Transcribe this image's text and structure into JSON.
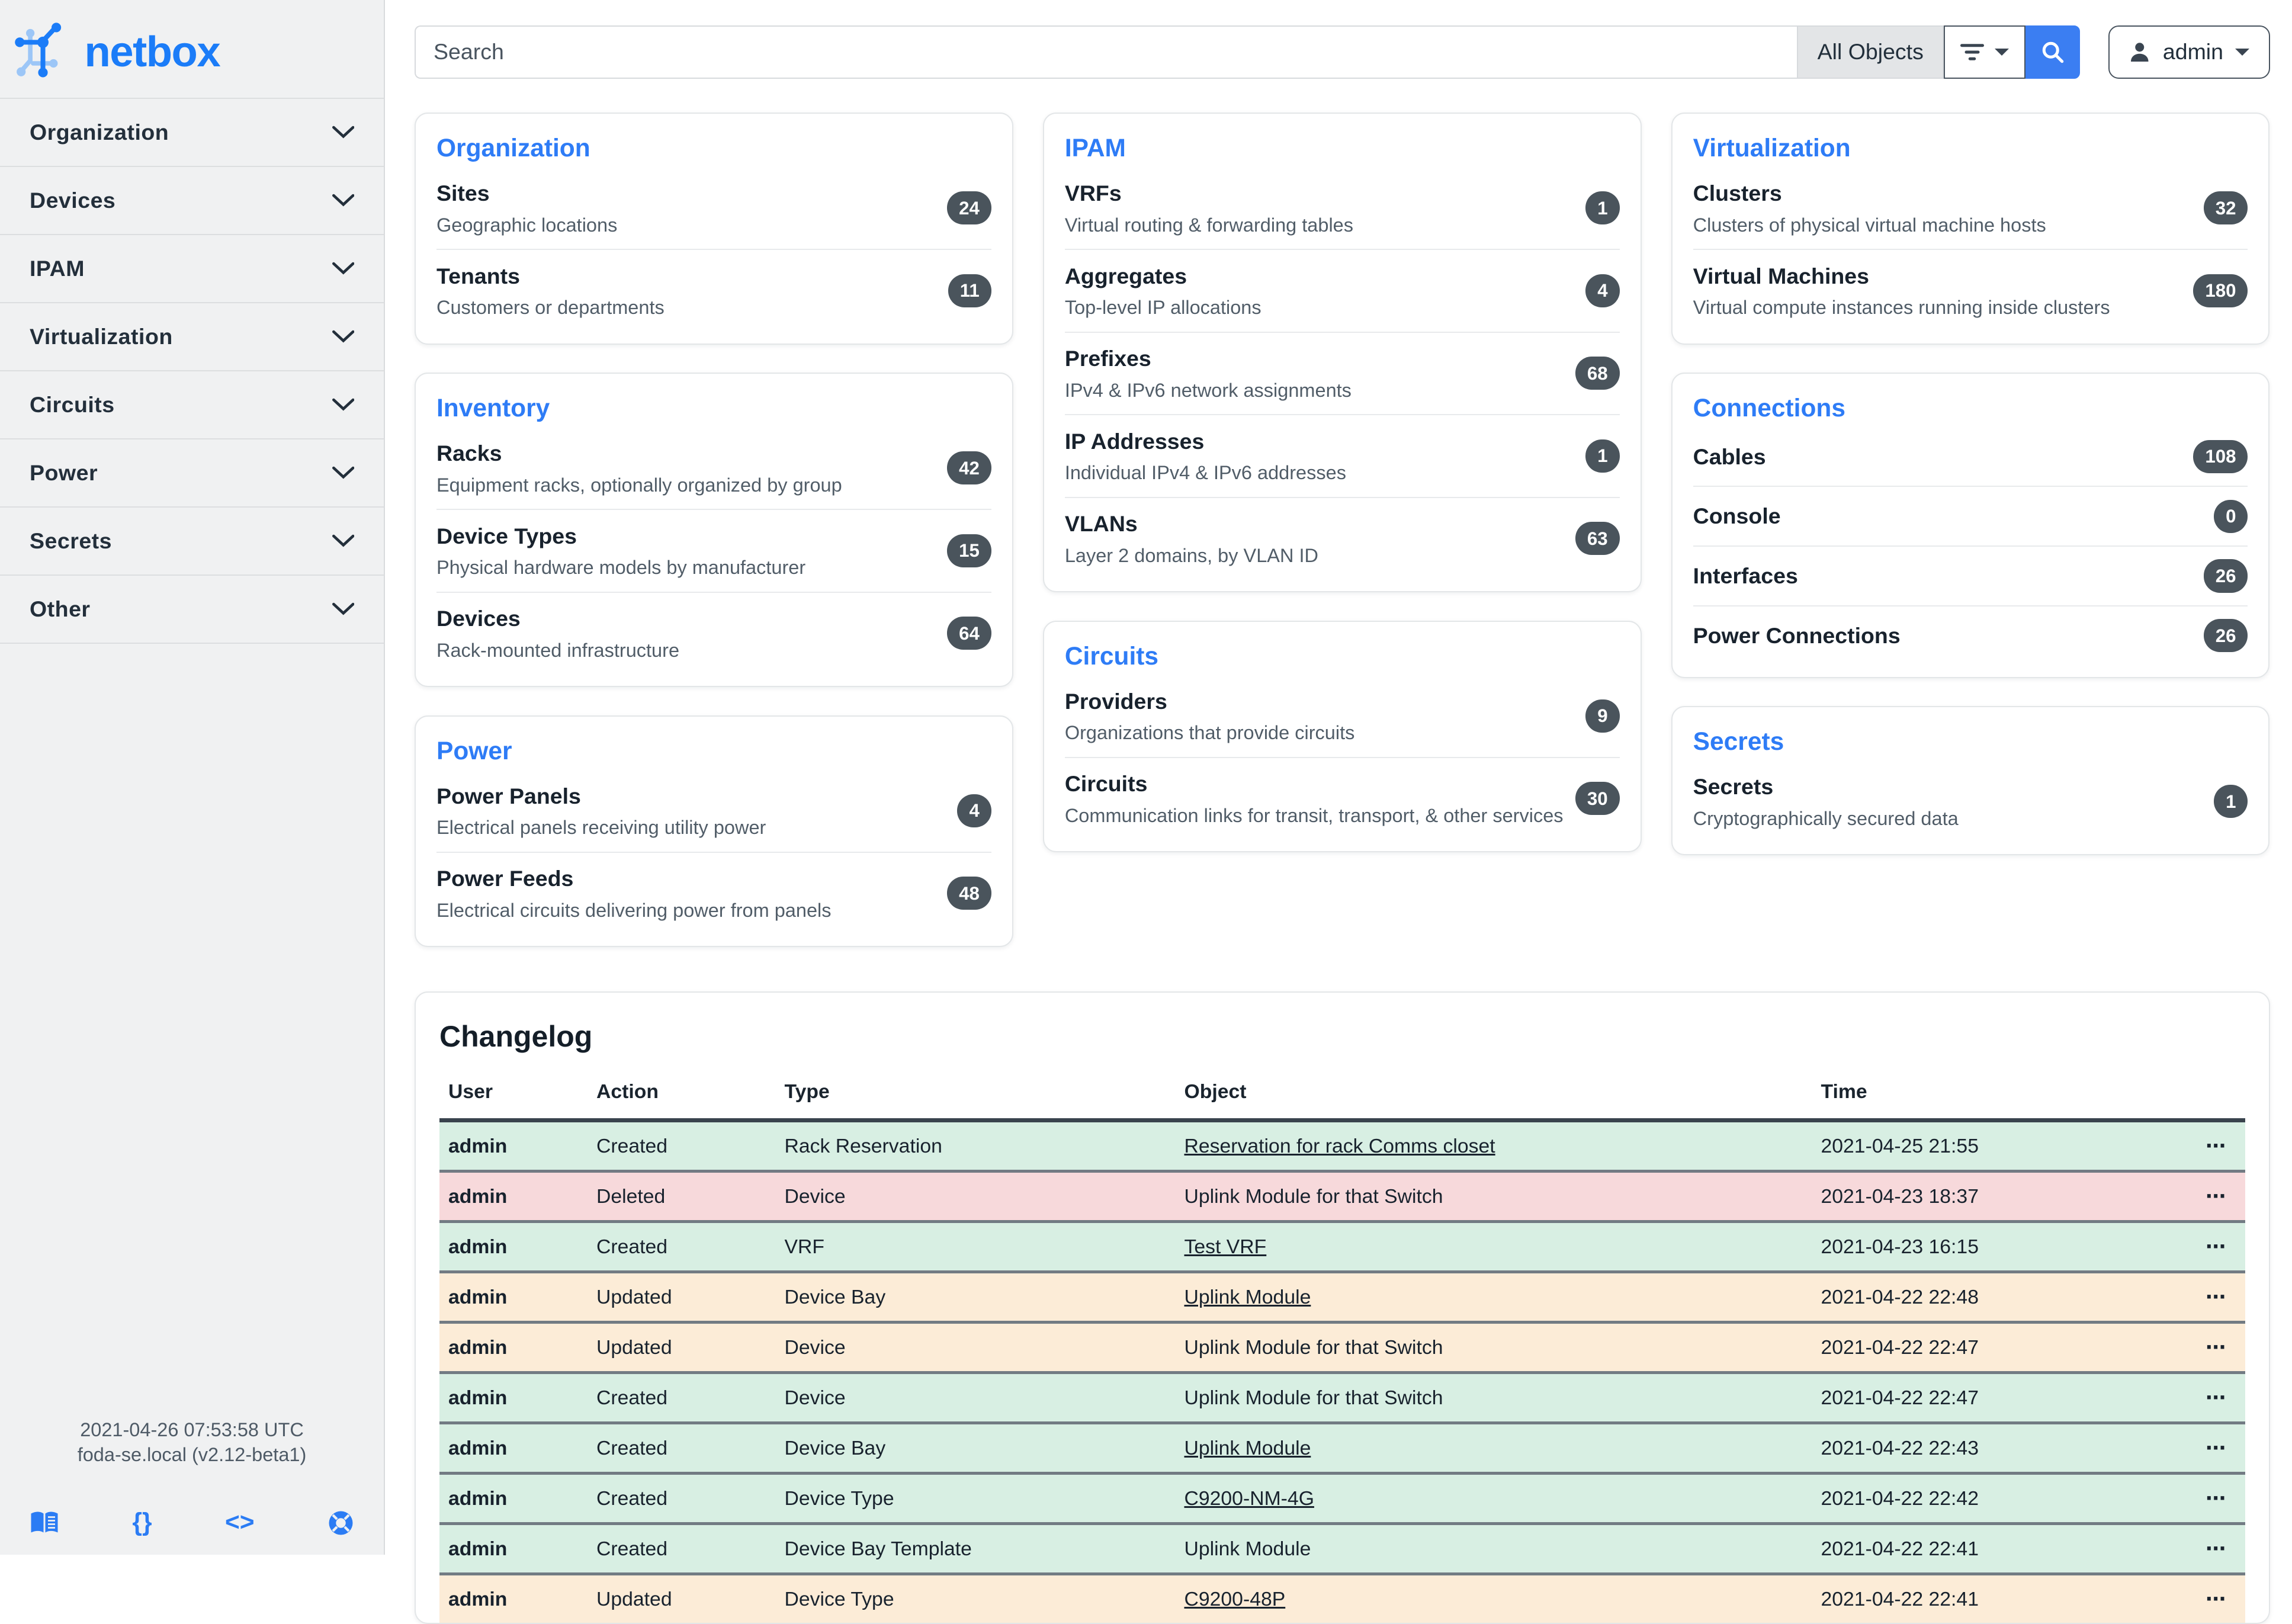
{
  "brand": {
    "name": "netbox"
  },
  "topbar": {
    "search_placeholder": "Search",
    "scope_label": "All Objects",
    "user_label": "admin"
  },
  "sidebar": {
    "items": [
      {
        "label": "Organization"
      },
      {
        "label": "Devices"
      },
      {
        "label": "IPAM"
      },
      {
        "label": "Virtualization"
      },
      {
        "label": "Circuits"
      },
      {
        "label": "Power"
      },
      {
        "label": "Secrets"
      },
      {
        "label": "Other"
      }
    ],
    "footer": {
      "timestamp": "2021-04-26 07:53:58 UTC",
      "host": "foda-se.local (v2.12-beta1)",
      "braces_glyph": "{}",
      "code_glyph": "<>"
    }
  },
  "cards": [
    {
      "title": "Organization",
      "column": 0,
      "items": [
        {
          "name": "Sites",
          "description": "Geographic locations",
          "count": "24"
        },
        {
          "name": "Tenants",
          "description": "Customers or departments",
          "count": "11"
        }
      ]
    },
    {
      "title": "Inventory",
      "column": 0,
      "items": [
        {
          "name": "Racks",
          "description": "Equipment racks, optionally organized by group",
          "count": "42"
        },
        {
          "name": "Device Types",
          "description": "Physical hardware models by manufacturer",
          "count": "15"
        },
        {
          "name": "Devices",
          "description": "Rack-mounted infrastructure",
          "count": "64"
        }
      ]
    },
    {
      "title": "Power",
      "column": 0,
      "items": [
        {
          "name": "Power Panels",
          "description": "Electrical panels receiving utility power",
          "count": "4"
        },
        {
          "name": "Power Feeds",
          "description": "Electrical circuits delivering power from panels",
          "count": "48"
        }
      ]
    },
    {
      "title": "IPAM",
      "column": 1,
      "items": [
        {
          "name": "VRFs",
          "description": "Virtual routing & forwarding tables",
          "count": "1"
        },
        {
          "name": "Aggregates",
          "description": "Top-level IP allocations",
          "count": "4"
        },
        {
          "name": "Prefixes",
          "description": "IPv4 & IPv6 network assignments",
          "count": "68"
        },
        {
          "name": "IP Addresses",
          "description": "Individual IPv4 & IPv6 addresses",
          "count": "1"
        },
        {
          "name": "VLANs",
          "description": "Layer 2 domains, by VLAN ID",
          "count": "63"
        }
      ]
    },
    {
      "title": "Circuits",
      "column": 1,
      "items": [
        {
          "name": "Providers",
          "description": "Organizations that provide circuits",
          "count": "9"
        },
        {
          "name": "Circuits",
          "description": "Communication links for transit, transport, & other services",
          "count": "30"
        }
      ]
    },
    {
      "title": "Virtualization",
      "column": 2,
      "items": [
        {
          "name": "Clusters",
          "description": "Clusters of physical virtual machine hosts",
          "count": "32"
        },
        {
          "name": "Virtual Machines",
          "description": "Virtual compute instances running inside clusters",
          "count": "180"
        }
      ]
    },
    {
      "title": "Connections",
      "column": 2,
      "items": [
        {
          "name": "Cables",
          "description": "",
          "count": "108"
        },
        {
          "name": "Console",
          "description": "",
          "count": "0"
        },
        {
          "name": "Interfaces",
          "description": "",
          "count": "26"
        },
        {
          "name": "Power Connections",
          "description": "",
          "count": "26"
        }
      ]
    },
    {
      "title": "Secrets",
      "column": 2,
      "items": [
        {
          "name": "Secrets",
          "description": "Cryptographically secured data",
          "count": "1"
        }
      ]
    }
  ],
  "changelog": {
    "title": "Changelog",
    "columns": [
      "User",
      "Action",
      "Type",
      "Object",
      "Time"
    ],
    "row_menu_label": "⋯",
    "rows": [
      {
        "user": "admin",
        "action": "Created",
        "type": "Rack Reservation",
        "object": "Reservation for rack Comms closet",
        "object_link": true,
        "time": "2021-04-25 21:55"
      },
      {
        "user": "admin",
        "action": "Deleted",
        "type": "Device",
        "object": "Uplink Module for that Switch",
        "object_link": false,
        "time": "2021-04-23 18:37"
      },
      {
        "user": "admin",
        "action": "Created",
        "type": "VRF",
        "object": "Test VRF",
        "object_link": true,
        "time": "2021-04-23 16:15"
      },
      {
        "user": "admin",
        "action": "Updated",
        "type": "Device Bay",
        "object": "Uplink Module",
        "object_link": true,
        "time": "2021-04-22 22:48"
      },
      {
        "user": "admin",
        "action": "Updated",
        "type": "Device",
        "object": "Uplink Module for that Switch",
        "object_link": false,
        "time": "2021-04-22 22:47"
      },
      {
        "user": "admin",
        "action": "Created",
        "type": "Device",
        "object": "Uplink Module for that Switch",
        "object_link": false,
        "time": "2021-04-22 22:47"
      },
      {
        "user": "admin",
        "action": "Created",
        "type": "Device Bay",
        "object": "Uplink Module",
        "object_link": true,
        "time": "2021-04-22 22:43"
      },
      {
        "user": "admin",
        "action": "Created",
        "type": "Device Type",
        "object": "C9200-NM-4G",
        "object_link": true,
        "time": "2021-04-22 22:42"
      },
      {
        "user": "admin",
        "action": "Created",
        "type": "Device Bay Template",
        "object": "Uplink Module",
        "object_link": false,
        "time": "2021-04-22 22:41"
      },
      {
        "user": "admin",
        "action": "Updated",
        "type": "Device Type",
        "object": "C9200-48P",
        "object_link": true,
        "time": "2021-04-22 22:41"
      }
    ]
  },
  "colors": {
    "accent": "#2b7cf4",
    "logo_blue": "#1b7cf8",
    "search_button_bg": "#3b7ef2",
    "badge_bg": "#4a545c",
    "sidebar_bg": "#f0f1f2",
    "row_created_bg": "#d8efe3",
    "row_deleted_bg": "#f7d9db",
    "row_updated_bg": "#fcecd7"
  }
}
